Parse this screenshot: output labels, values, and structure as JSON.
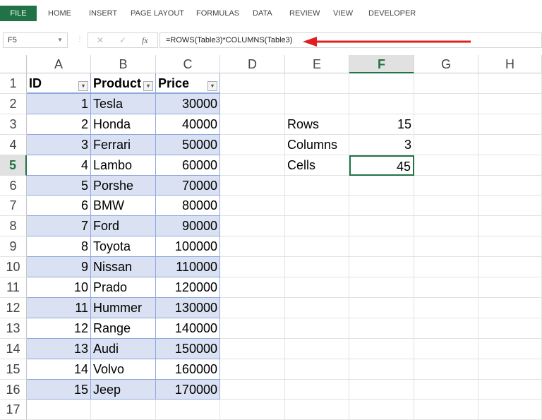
{
  "ribbon": {
    "tabs": [
      "FILE",
      "HOME",
      "INSERT",
      "PAGE LAYOUT",
      "FORMULAS",
      "DATA",
      "REVIEW",
      "VIEW",
      "DEVELOPER"
    ]
  },
  "formula_bar": {
    "name_box": "F5",
    "formula": "=ROWS(Table3)*COLUMNS(Table3)",
    "cancel_icon": "x-icon",
    "enter_icon": "check-icon",
    "fx_label": "fx"
  },
  "colors": {
    "accent": "#217346",
    "table_band": "#d9e1f2",
    "table_border": "#8ea9db",
    "arrow": "#e02020"
  },
  "columns": [
    "A",
    "B",
    "C",
    "D",
    "E",
    "F",
    "G",
    "H"
  ],
  "selected_column": "F",
  "selected_row": 5,
  "rows": [
    "1",
    "2",
    "3",
    "4",
    "5",
    "6",
    "7",
    "8",
    "9",
    "10",
    "11",
    "12",
    "13",
    "14",
    "15",
    "16",
    "17"
  ],
  "table": {
    "headers": [
      "ID",
      "Product",
      "Price"
    ],
    "rows": [
      [
        "1",
        "Tesla",
        "30000"
      ],
      [
        "2",
        "Honda",
        "40000"
      ],
      [
        "3",
        "Ferrari",
        "50000"
      ],
      [
        "4",
        "Lambo",
        "60000"
      ],
      [
        "5",
        "Porshe",
        "70000"
      ],
      [
        "6",
        "BMW",
        "80000"
      ],
      [
        "7",
        "Ford",
        "90000"
      ],
      [
        "8",
        "Toyota",
        "100000"
      ],
      [
        "9",
        "Nissan",
        "110000"
      ],
      [
        "10",
        "Prado",
        "120000"
      ],
      [
        "11",
        "Hummer",
        "130000"
      ],
      [
        "12",
        "Range",
        "140000"
      ],
      [
        "13",
        "Audi",
        "150000"
      ],
      [
        "14",
        "Volvo",
        "160000"
      ],
      [
        "15",
        "Jeep",
        "170000"
      ]
    ]
  },
  "summary": [
    {
      "label": "Rows",
      "value": "15"
    },
    {
      "label": "Columns",
      "value": "3"
    },
    {
      "label": "Cells",
      "value": "45"
    }
  ]
}
